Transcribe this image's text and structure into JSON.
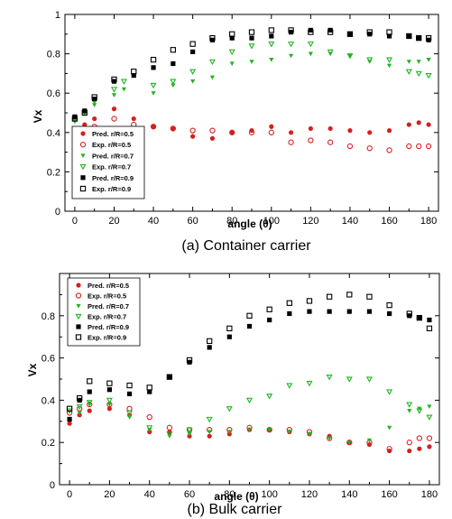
{
  "chart_data": [
    {
      "type": "scatter",
      "caption": "(a) Container carrier",
      "xlabel": "angle (θ)",
      "ylabel": "Vx",
      "xlim": [
        -5,
        185
      ],
      "ylim": [
        0,
        1
      ],
      "xticks": [
        0,
        20,
        40,
        60,
        80,
        100,
        120,
        140,
        160,
        180
      ],
      "yticks": [
        0,
        0.2,
        0.4,
        0.6,
        0.8,
        1
      ],
      "ytick_labels": [
        "0",
        "0.2",
        "0.4",
        "0.6",
        "0.8",
        "1"
      ],
      "legend_position": "lower-left",
      "series": [
        {
          "name": "Pred. r/R=0.5",
          "marker": "filled-circle",
          "color": "#d42020",
          "x": [
            0,
            5,
            10,
            20,
            30,
            40,
            50,
            60,
            70,
            80,
            90,
            100,
            110,
            120,
            130,
            140,
            150,
            160,
            170,
            175,
            180
          ],
          "y": [
            0.42,
            0.44,
            0.47,
            0.52,
            0.47,
            0.43,
            0.42,
            0.38,
            0.37,
            0.4,
            0.41,
            0.43,
            0.4,
            0.42,
            0.42,
            0.41,
            0.4,
            0.41,
            0.44,
            0.45,
            0.44
          ]
        },
        {
          "name": "Exp. r/R=0.5",
          "marker": "open-circle",
          "color": "#d42020",
          "x": [
            0,
            5,
            10,
            20,
            30,
            40,
            50,
            60,
            70,
            80,
            90,
            100,
            110,
            120,
            130,
            140,
            150,
            160,
            170,
            175,
            180
          ],
          "y": [
            0.41,
            0.42,
            0.43,
            0.47,
            0.44,
            0.43,
            0.42,
            0.41,
            0.41,
            0.4,
            0.4,
            0.4,
            0.35,
            0.36,
            0.35,
            0.33,
            0.32,
            0.31,
            0.33,
            0.33,
            0.33
          ]
        },
        {
          "name": "Pred. r/R=0.7",
          "marker": "filled-triangle-down",
          "color": "#22b422",
          "x": [
            0,
            5,
            10,
            20,
            25,
            40,
            50,
            60,
            70,
            80,
            90,
            100,
            110,
            120,
            130,
            140,
            150,
            160,
            170,
            175,
            180
          ],
          "y": [
            0.46,
            0.5,
            0.54,
            0.59,
            0.62,
            0.6,
            0.64,
            0.66,
            0.68,
            0.75,
            0.76,
            0.77,
            0.79,
            0.8,
            0.8,
            0.79,
            0.76,
            0.74,
            0.76,
            0.76,
            0.77
          ]
        },
        {
          "name": "Exp. r/R=0.7",
          "marker": "open-triangle-down",
          "color": "#22b422",
          "x": [
            0,
            5,
            10,
            20,
            25,
            40,
            50,
            60,
            70,
            80,
            90,
            100,
            110,
            120,
            130,
            140,
            150,
            160,
            170,
            175,
            180
          ],
          "y": [
            0.46,
            0.5,
            0.56,
            0.62,
            0.66,
            0.64,
            0.66,
            0.71,
            0.76,
            0.81,
            0.84,
            0.85,
            0.85,
            0.85,
            0.81,
            0.79,
            0.77,
            0.77,
            0.71,
            0.7,
            0.69
          ]
        },
        {
          "name": "Pred. r/R=0.9",
          "marker": "filled-square",
          "color": "#000000",
          "x": [
            0,
            5,
            10,
            20,
            30,
            40,
            50,
            60,
            70,
            80,
            90,
            100,
            110,
            120,
            130,
            140,
            150,
            160,
            170,
            175,
            180
          ],
          "y": [
            0.48,
            0.51,
            0.57,
            0.66,
            0.69,
            0.73,
            0.75,
            0.81,
            0.87,
            0.88,
            0.88,
            0.89,
            0.91,
            0.92,
            0.92,
            0.9,
            0.9,
            0.89,
            0.89,
            0.88,
            0.87
          ]
        },
        {
          "name": "Exp. r/R=0.9",
          "marker": "open-square",
          "color": "#000000",
          "x": [
            0,
            5,
            10,
            20,
            30,
            40,
            50,
            60,
            70,
            80,
            90,
            100,
            110,
            120,
            130,
            140,
            150,
            160,
            170,
            175,
            180
          ],
          "y": [
            0.47,
            0.5,
            0.58,
            0.67,
            0.71,
            0.77,
            0.82,
            0.85,
            0.88,
            0.9,
            0.91,
            0.92,
            0.92,
            0.91,
            0.91,
            0.9,
            0.91,
            0.91,
            0.89,
            0.88,
            0.88
          ]
        }
      ]
    },
    {
      "type": "scatter",
      "caption": "(b) Bulk carrier",
      "xlabel": "angle (θ)",
      "ylabel": "Vx",
      "xlim": [
        -5,
        185
      ],
      "ylim": [
        0,
        1
      ],
      "xticks": [
        0,
        20,
        40,
        60,
        80,
        100,
        120,
        140,
        160,
        180
      ],
      "yticks": [
        0,
        0.2,
        0.4,
        0.6,
        0.8
      ],
      "ytick_labels": [
        "0",
        "0.2",
        "0.4",
        "0.6",
        "0.8"
      ],
      "legend_position": "top-left",
      "series": [
        {
          "name": "Pred. r/R=0.5",
          "marker": "filled-circle",
          "color": "#d42020",
          "x": [
            0,
            5,
            10,
            20,
            30,
            40,
            50,
            60,
            70,
            80,
            90,
            100,
            110,
            120,
            130,
            140,
            150,
            160,
            170,
            175,
            180
          ],
          "y": [
            0.29,
            0.33,
            0.35,
            0.36,
            0.33,
            0.25,
            0.25,
            0.23,
            0.23,
            0.24,
            0.26,
            0.26,
            0.25,
            0.24,
            0.23,
            0.2,
            0.19,
            0.16,
            0.16,
            0.17,
            0.18
          ]
        },
        {
          "name": "Exp. r/R=0.5",
          "marker": "open-circle",
          "color": "#d42020",
          "x": [
            0,
            5,
            10,
            20,
            30,
            40,
            50,
            60,
            70,
            80,
            90,
            100,
            110,
            120,
            130,
            140,
            150,
            160,
            170,
            175,
            180
          ],
          "y": [
            0.34,
            0.36,
            0.38,
            0.38,
            0.36,
            0.32,
            0.27,
            0.26,
            0.26,
            0.26,
            0.27,
            0.26,
            0.26,
            0.25,
            0.22,
            0.2,
            0.2,
            0.17,
            0.2,
            0.22,
            0.22
          ]
        },
        {
          "name": "Pred. r/R=0.7",
          "marker": "filled-triangle-down",
          "color": "#22b422",
          "x": [
            0,
            5,
            10,
            20,
            30,
            40,
            50,
            60,
            70,
            80,
            90,
            100,
            110,
            120,
            130,
            140,
            150,
            160,
            170,
            175,
            180
          ],
          "y": [
            0.31,
            0.34,
            0.38,
            0.38,
            0.32,
            0.26,
            0.23,
            0.24,
            0.25,
            0.25,
            0.26,
            0.26,
            0.25,
            0.24,
            0.22,
            0.2,
            0.21,
            0.27,
            0.35,
            0.36,
            0.37
          ]
        },
        {
          "name": "Exp. r/R=0.7",
          "marker": "open-triangle-down",
          "color": "#22b422",
          "x": [
            0,
            5,
            10,
            20,
            30,
            40,
            50,
            60,
            70,
            80,
            90,
            100,
            110,
            120,
            130,
            140,
            150,
            160,
            170,
            175,
            180
          ],
          "y": [
            0.35,
            0.37,
            0.39,
            0.4,
            0.34,
            0.27,
            0.24,
            0.26,
            0.31,
            0.36,
            0.4,
            0.42,
            0.47,
            0.48,
            0.51,
            0.5,
            0.5,
            0.44,
            0.38,
            0.35,
            0.32
          ]
        },
        {
          "name": "Pred. r/R=0.9",
          "marker": "filled-square",
          "color": "#000000",
          "x": [
            0,
            5,
            10,
            20,
            30,
            40,
            50,
            60,
            70,
            80,
            90,
            100,
            110,
            120,
            130,
            140,
            150,
            160,
            170,
            175,
            180
          ],
          "y": [
            0.31,
            0.4,
            0.44,
            0.45,
            0.43,
            0.44,
            0.51,
            0.58,
            0.65,
            0.7,
            0.75,
            0.78,
            0.81,
            0.82,
            0.82,
            0.82,
            0.82,
            0.81,
            0.8,
            0.79,
            0.78
          ]
        },
        {
          "name": "Exp. r/R=0.9",
          "marker": "open-square",
          "color": "#000000",
          "x": [
            0,
            5,
            10,
            20,
            30,
            40,
            50,
            60,
            70,
            80,
            90,
            100,
            110,
            120,
            130,
            140,
            150,
            160,
            170,
            175,
            180
          ],
          "y": [
            0.36,
            0.41,
            0.49,
            0.48,
            0.47,
            0.46,
            0.51,
            0.59,
            0.68,
            0.74,
            0.8,
            0.83,
            0.86,
            0.87,
            0.89,
            0.9,
            0.89,
            0.85,
            0.81,
            0.79,
            0.74
          ]
        }
      ]
    }
  ]
}
